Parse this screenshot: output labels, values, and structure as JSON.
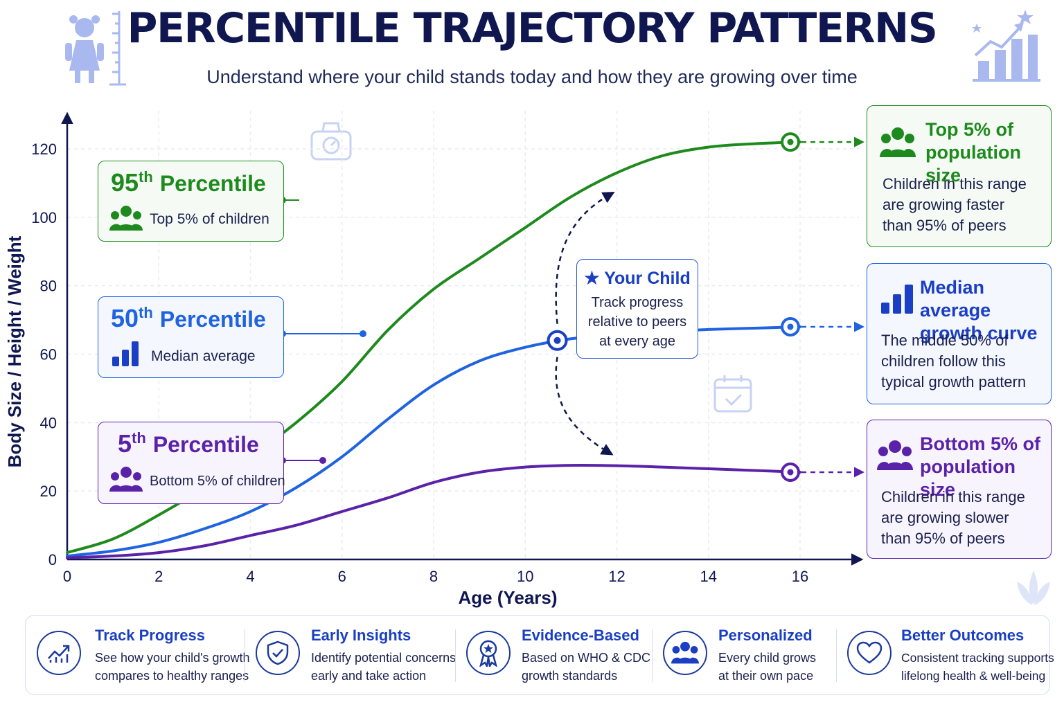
{
  "header": {
    "title": "PERCENTILE TRAJECTORY PATTERNS",
    "subtitle": "Understand where your child stands today and how they are growing over time"
  },
  "chart_data": {
    "type": "line",
    "ylabel": "Body Size / Height / Weight",
    "xlabel": "Age (Years)",
    "xlim": [
      0,
      17
    ],
    "ylim": [
      0,
      125
    ],
    "x_ticks": [
      0,
      2,
      4,
      6,
      8,
      10,
      12,
      14,
      16
    ],
    "y_ticks": [
      0,
      20,
      40,
      60,
      80,
      100,
      120
    ],
    "grid": true,
    "series": [
      {
        "name": "95th Percentile",
        "color": "#1e8a1e",
        "x": [
          0,
          1,
          2,
          3,
          4,
          5,
          6,
          7,
          8,
          9,
          10,
          11,
          12,
          13,
          14,
          15,
          16
        ],
        "y": [
          2,
          6,
          13,
          21,
          30,
          40,
          52,
          67,
          79,
          88,
          97,
          106,
          113,
          118,
          120.5,
          121.5,
          122
        ]
      },
      {
        "name": "50th Percentile",
        "color": "#1f63e0",
        "x": [
          0,
          1,
          2,
          3,
          4,
          5,
          6,
          7,
          8,
          9,
          10,
          11,
          12,
          13,
          14,
          15,
          16
        ],
        "y": [
          1,
          2.5,
          5,
          9,
          14,
          21,
          30,
          41,
          51,
          58,
          62,
          64.5,
          65.8,
          66.6,
          67.2,
          67.6,
          68
        ]
      },
      {
        "name": "5th Percentile",
        "color": "#5a22a8",
        "x": [
          0,
          1,
          2,
          3,
          4,
          5,
          6,
          7,
          8,
          9,
          10,
          11,
          12,
          13,
          14,
          15,
          16
        ],
        "y": [
          0.5,
          1,
          2,
          4,
          7,
          10,
          14,
          18,
          22.5,
          25.5,
          27,
          27.5,
          27.4,
          27,
          26.5,
          26,
          25.5
        ]
      }
    ],
    "your_child_marker": {
      "x": 10.7,
      "y": 64
    }
  },
  "cards": {
    "p95": {
      "num": "95",
      "sup": "th",
      "word": "Percentile",
      "sub": "Top 5% of children"
    },
    "p50": {
      "num": "50",
      "sup": "th",
      "word": "Percentile",
      "sub": "Median average"
    },
    "p5": {
      "num": "5",
      "sup": "th",
      "word": "Percentile",
      "sub": "Bottom 5% of children"
    }
  },
  "info": {
    "top": {
      "title1": "Top 5% of",
      "title2": "population size",
      "d1": "Children in this range",
      "d2": "are growing faster",
      "d3": "than 95% of peers"
    },
    "median": {
      "title1": "Median average",
      "title2": "growth curve",
      "d1": "The middle 50% of",
      "d2": "children follow this",
      "d3": "typical growth pattern"
    },
    "bottom": {
      "title1": "Bottom 5% of",
      "title2": "population size",
      "d1": "Children in this range",
      "d2": "are growing slower",
      "d3": "than 95% of peers"
    }
  },
  "child": {
    "title": "Your Child",
    "l1": "Track progress",
    "l2": "relative to peers",
    "l3": "at every age"
  },
  "features": [
    {
      "title": "Track Progress",
      "l1": "See how your child's growth",
      "l2": "compares to healthy ranges",
      "icon": "trend-chart-icon"
    },
    {
      "title": "Early Insights",
      "l1": "Identify potential concerns",
      "l2": "early and take action",
      "icon": "shield-check-icon"
    },
    {
      "title": "Evidence-Based",
      "l1": "Based on WHO & CDC",
      "l2": "growth standards",
      "icon": "award-ribbon-icon"
    },
    {
      "title": "Personalized",
      "l1": "Every child grows",
      "l2": "at their own pace",
      "icon": "people-group-icon"
    },
    {
      "title": "Better Outcomes",
      "l1": "Consistent tracking supports",
      "l2": "lifelong health & well-being",
      "icon": "heart-icon"
    }
  ],
  "colors": {
    "green": "#1e8a1e",
    "blue": "#1f63e0",
    "purple": "#5a22a8",
    "navy": "#0f1650"
  }
}
